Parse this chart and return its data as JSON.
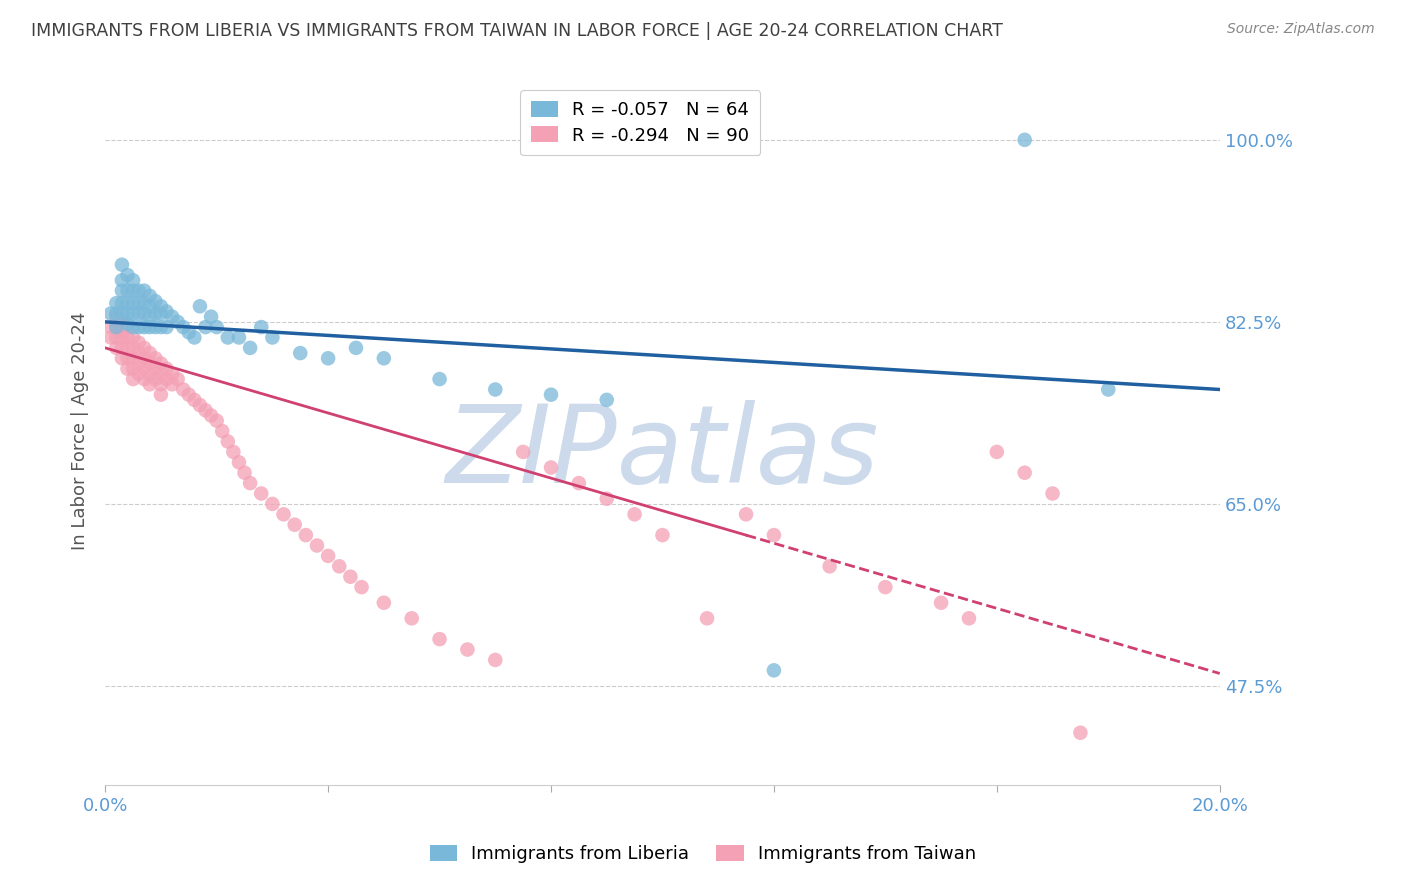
{
  "title": "IMMIGRANTS FROM LIBERIA VS IMMIGRANTS FROM TAIWAN IN LABOR FORCE | AGE 20-24 CORRELATION CHART",
  "source": "Source: ZipAtlas.com",
  "ylabel_label": "In Labor Force | Age 20-24",
  "xlim": [
    0.0,
    0.2
  ],
  "ylim": [
    0.38,
    1.06
  ],
  "legend_liberia": "Immigrants from Liberia",
  "legend_taiwan": "Immigrants from Taiwan",
  "R_liberia": -0.057,
  "N_liberia": 64,
  "R_taiwan": -0.294,
  "N_taiwan": 90,
  "color_liberia": "#7ab8d9",
  "color_taiwan": "#f4a0b5",
  "color_trendline_liberia": "#2060a0",
  "color_trendline_taiwan": "#d04070",
  "trendline_liberia_x0": 0.0,
  "trendline_liberia_y0": 0.825,
  "trendline_liberia_x1": 0.2,
  "trendline_liberia_y1": 0.76,
  "trendline_taiwan_x0": 0.0,
  "trendline_taiwan_y0": 0.8,
  "trendline_taiwan_x1": 0.115,
  "trendline_taiwan_y1": 0.62,
  "trendline_taiwan_xdash0": 0.115,
  "trendline_taiwan_ydash0": 0.62,
  "trendline_taiwan_xdash1": 0.2,
  "trendline_taiwan_ydash1": 0.487,
  "watermark": "ZIPatlas",
  "watermark_color": "#ccdaeb",
  "background_color": "#ffffff",
  "grid_color": "#cccccc",
  "axis_label_color": "#5b9bd5",
  "title_color": "#404040",
  "ytick_positions": [
    0.475,
    0.65,
    0.825,
    1.0
  ],
  "ytick_labels": [
    "47.5%",
    "65.0%",
    "82.5%",
    "100.0%"
  ],
  "liberia_x": [
    0.001,
    0.002,
    0.002,
    0.002,
    0.003,
    0.003,
    0.003,
    0.003,
    0.003,
    0.004,
    0.004,
    0.004,
    0.004,
    0.004,
    0.005,
    0.005,
    0.005,
    0.005,
    0.005,
    0.006,
    0.006,
    0.006,
    0.006,
    0.007,
    0.007,
    0.007,
    0.007,
    0.008,
    0.008,
    0.008,
    0.008,
    0.009,
    0.009,
    0.009,
    0.01,
    0.01,
    0.01,
    0.011,
    0.011,
    0.012,
    0.013,
    0.014,
    0.015,
    0.016,
    0.017,
    0.018,
    0.019,
    0.02,
    0.022,
    0.024,
    0.026,
    0.028,
    0.03,
    0.035,
    0.04,
    0.045,
    0.05,
    0.06,
    0.07,
    0.08,
    0.09,
    0.12,
    0.165,
    0.18
  ],
  "liberia_y": [
    0.833,
    0.82,
    0.833,
    0.843,
    0.88,
    0.865,
    0.855,
    0.843,
    0.833,
    0.87,
    0.855,
    0.843,
    0.833,
    0.823,
    0.865,
    0.855,
    0.843,
    0.833,
    0.82,
    0.855,
    0.843,
    0.833,
    0.82,
    0.855,
    0.843,
    0.833,
    0.82,
    0.85,
    0.84,
    0.83,
    0.82,
    0.845,
    0.833,
    0.82,
    0.84,
    0.833,
    0.82,
    0.835,
    0.82,
    0.83,
    0.825,
    0.82,
    0.815,
    0.81,
    0.84,
    0.82,
    0.83,
    0.82,
    0.81,
    0.81,
    0.8,
    0.82,
    0.81,
    0.795,
    0.79,
    0.8,
    0.79,
    0.77,
    0.76,
    0.755,
    0.75,
    0.49,
    1.0,
    0.76
  ],
  "taiwan_x": [
    0.001,
    0.001,
    0.002,
    0.002,
    0.002,
    0.002,
    0.003,
    0.003,
    0.003,
    0.003,
    0.003,
    0.004,
    0.004,
    0.004,
    0.004,
    0.004,
    0.005,
    0.005,
    0.005,
    0.005,
    0.005,
    0.006,
    0.006,
    0.006,
    0.006,
    0.007,
    0.007,
    0.007,
    0.007,
    0.008,
    0.008,
    0.008,
    0.008,
    0.009,
    0.009,
    0.009,
    0.01,
    0.01,
    0.01,
    0.01,
    0.011,
    0.011,
    0.012,
    0.012,
    0.013,
    0.014,
    0.015,
    0.016,
    0.017,
    0.018,
    0.019,
    0.02,
    0.021,
    0.022,
    0.023,
    0.024,
    0.025,
    0.026,
    0.028,
    0.03,
    0.032,
    0.034,
    0.036,
    0.038,
    0.04,
    0.042,
    0.044,
    0.046,
    0.05,
    0.055,
    0.06,
    0.065,
    0.07,
    0.075,
    0.08,
    0.085,
    0.09,
    0.095,
    0.1,
    0.108,
    0.115,
    0.12,
    0.13,
    0.14,
    0.15,
    0.155,
    0.16,
    0.165,
    0.17,
    0.175
  ],
  "taiwan_y": [
    0.82,
    0.81,
    0.83,
    0.82,
    0.81,
    0.8,
    0.825,
    0.815,
    0.81,
    0.8,
    0.79,
    0.82,
    0.81,
    0.8,
    0.79,
    0.78,
    0.81,
    0.8,
    0.79,
    0.78,
    0.77,
    0.805,
    0.795,
    0.785,
    0.775,
    0.8,
    0.79,
    0.78,
    0.77,
    0.795,
    0.785,
    0.775,
    0.765,
    0.79,
    0.78,
    0.77,
    0.785,
    0.775,
    0.765,
    0.755,
    0.78,
    0.77,
    0.775,
    0.765,
    0.77,
    0.76,
    0.755,
    0.75,
    0.745,
    0.74,
    0.735,
    0.73,
    0.72,
    0.71,
    0.7,
    0.69,
    0.68,
    0.67,
    0.66,
    0.65,
    0.64,
    0.63,
    0.62,
    0.61,
    0.6,
    0.59,
    0.58,
    0.57,
    0.555,
    0.54,
    0.52,
    0.51,
    0.5,
    0.7,
    0.685,
    0.67,
    0.655,
    0.64,
    0.62,
    0.54,
    0.64,
    0.62,
    0.59,
    0.57,
    0.555,
    0.54,
    0.7,
    0.68,
    0.66,
    0.43
  ]
}
